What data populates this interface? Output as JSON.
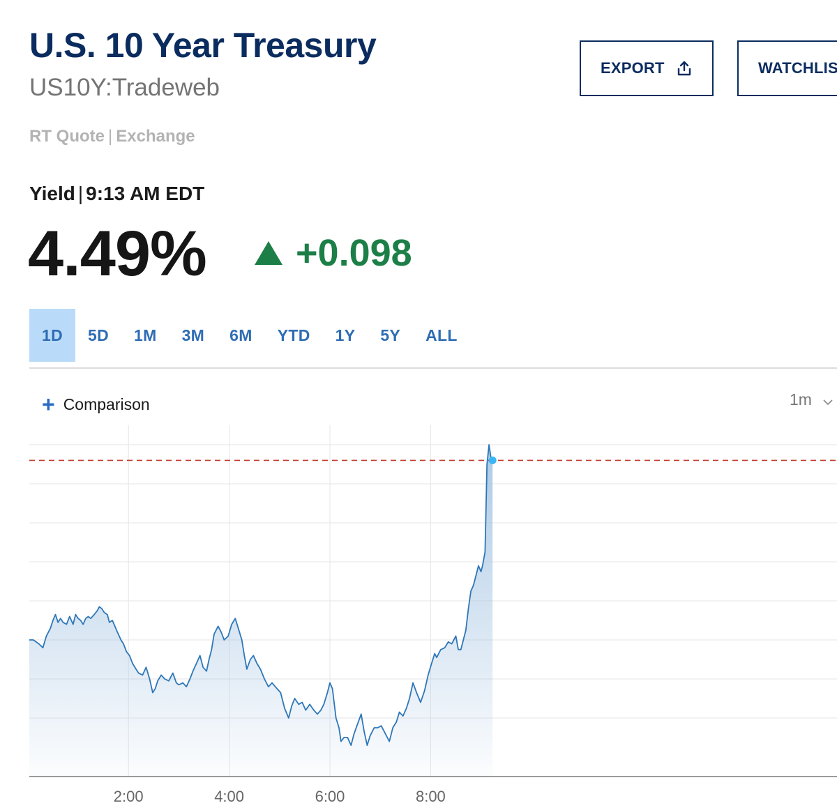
{
  "header": {
    "title": "U.S. 10 Year Treasury",
    "symbol": "US10Y:Tradeweb",
    "quote_type": "RT Quote",
    "quote_separator": "|",
    "quote_source": "Exchange"
  },
  "actions": {
    "export_label": "EXPORT",
    "watchlist_label": "WATCHLIST"
  },
  "quote": {
    "label": "Yield",
    "separator": "|",
    "time": "9:13 AM EDT",
    "value": "4.49%",
    "change": "+0.098",
    "direction": "up"
  },
  "range_tabs": [
    {
      "label": "1D",
      "active": true
    },
    {
      "label": "5D",
      "active": false
    },
    {
      "label": "1M",
      "active": false
    },
    {
      "label": "3M",
      "active": false
    },
    {
      "label": "6M",
      "active": false
    },
    {
      "label": "YTD",
      "active": false
    },
    {
      "label": "1Y",
      "active": false
    },
    {
      "label": "5Y",
      "active": false
    },
    {
      "label": "ALL",
      "active": false
    }
  ],
  "toolbar": {
    "comparison_label": "Comparison",
    "interval": "1m"
  },
  "colors": {
    "title": "#0b2c5f",
    "accent": "#2f6db5",
    "positive": "#1c7f47",
    "line": "#2e77b7",
    "reference_line": "#c0392b",
    "current_dot": "#3ab6f5"
  },
  "chart_data": {
    "type": "area",
    "x_unit": "hour",
    "x_ticks": [
      {
        "label": "2:00",
        "value": 2
      },
      {
        "label": "4:00",
        "value": 4
      },
      {
        "label": "6:00",
        "value": 6
      },
      {
        "label": "8:00",
        "value": 8
      }
    ],
    "xlim": [
      0.03,
      16.07
    ],
    "ylim": [
      4.33,
      4.51
    ],
    "gridlines_y": [
      4.36,
      4.38,
      4.4,
      4.42,
      4.44,
      4.46,
      4.48,
      4.5
    ],
    "reference_value": 4.492,
    "current": {
      "x": 9.23,
      "y": 4.492
    },
    "series": [
      {
        "values": [
          [
            0.03,
            4.4
          ],
          [
            0.11,
            4.4
          ],
          [
            0.22,
            4.398
          ],
          [
            0.3,
            4.396
          ],
          [
            0.37,
            4.402
          ],
          [
            0.45,
            4.406
          ],
          [
            0.5,
            4.41
          ],
          [
            0.55,
            4.413
          ],
          [
            0.6,
            4.409
          ],
          [
            0.65,
            4.411
          ],
          [
            0.7,
            4.409
          ],
          [
            0.77,
            4.408
          ],
          [
            0.83,
            4.412
          ],
          [
            0.9,
            4.408
          ],
          [
            0.95,
            4.413
          ],
          [
            1.0,
            4.411
          ],
          [
            1.05,
            4.41
          ],
          [
            1.1,
            4.408
          ],
          [
            1.15,
            4.411
          ],
          [
            1.2,
            4.412
          ],
          [
            1.25,
            4.411
          ],
          [
            1.32,
            4.413
          ],
          [
            1.38,
            4.415
          ],
          [
            1.42,
            4.417
          ],
          [
            1.47,
            4.416
          ],
          [
            1.52,
            4.414
          ],
          [
            1.58,
            4.413
          ],
          [
            1.62,
            4.409
          ],
          [
            1.68,
            4.41
          ],
          [
            1.73,
            4.407
          ],
          [
            1.78,
            4.404
          ],
          [
            1.85,
            4.4
          ],
          [
            1.9,
            4.398
          ],
          [
            1.96,
            4.394
          ],
          [
            2.02,
            4.392
          ],
          [
            2.08,
            4.388
          ],
          [
            2.15,
            4.385
          ],
          [
            2.2,
            4.383
          ],
          [
            2.28,
            4.382
          ],
          [
            2.35,
            4.386
          ],
          [
            2.42,
            4.38
          ],
          [
            2.48,
            4.373
          ],
          [
            2.53,
            4.375
          ],
          [
            2.58,
            4.379
          ],
          [
            2.65,
            4.382
          ],
          [
            2.72,
            4.38
          ],
          [
            2.8,
            4.379
          ],
          [
            2.88,
            4.383
          ],
          [
            2.95,
            4.378
          ],
          [
            3.0,
            4.377
          ],
          [
            3.08,
            4.378
          ],
          [
            3.15,
            4.376
          ],
          [
            3.22,
            4.38
          ],
          [
            3.28,
            4.384
          ],
          [
            3.35,
            4.388
          ],
          [
            3.42,
            4.392
          ],
          [
            3.48,
            4.386
          ],
          [
            3.55,
            4.384
          ],
          [
            3.6,
            4.39
          ],
          [
            3.65,
            4.395
          ],
          [
            3.7,
            4.403
          ],
          [
            3.78,
            4.407
          ],
          [
            3.84,
            4.404
          ],
          [
            3.9,
            4.4
          ],
          [
            3.98,
            4.402
          ],
          [
            4.05,
            4.408
          ],
          [
            4.12,
            4.411
          ],
          [
            4.18,
            4.406
          ],
          [
            4.25,
            4.4
          ],
          [
            4.3,
            4.392
          ],
          [
            4.35,
            4.385
          ],
          [
            4.42,
            4.39
          ],
          [
            4.48,
            4.392
          ],
          [
            4.55,
            4.388
          ],
          [
            4.62,
            4.385
          ],
          [
            4.7,
            4.38
          ],
          [
            4.78,
            4.376
          ],
          [
            4.85,
            4.378
          ],
          [
            4.95,
            4.375
          ],
          [
            5.02,
            4.373
          ],
          [
            5.1,
            4.365
          ],
          [
            5.18,
            4.36
          ],
          [
            5.24,
            4.366
          ],
          [
            5.3,
            4.37
          ],
          [
            5.38,
            4.367
          ],
          [
            5.45,
            4.368
          ],
          [
            5.52,
            4.364
          ],
          [
            5.6,
            4.367
          ],
          [
            5.68,
            4.364
          ],
          [
            5.75,
            4.362
          ],
          [
            5.82,
            4.364
          ],
          [
            5.88,
            4.367
          ],
          [
            5.95,
            4.373
          ],
          [
            6.0,
            4.378
          ],
          [
            6.05,
            4.375
          ],
          [
            6.12,
            4.36
          ],
          [
            6.18,
            4.355
          ],
          [
            6.22,
            4.348
          ],
          [
            6.28,
            4.35
          ],
          [
            6.35,
            4.35
          ],
          [
            6.42,
            4.346
          ],
          [
            6.48,
            4.352
          ],
          [
            6.55,
            4.357
          ],
          [
            6.62,
            4.362
          ],
          [
            6.68,
            4.353
          ],
          [
            6.74,
            4.346
          ],
          [
            6.8,
            4.351
          ],
          [
            6.88,
            4.355
          ],
          [
            6.95,
            4.355
          ],
          [
            7.02,
            4.356
          ],
          [
            7.1,
            4.352
          ],
          [
            7.18,
            4.348
          ],
          [
            7.25,
            4.355
          ],
          [
            7.32,
            4.358
          ],
          [
            7.38,
            4.363
          ],
          [
            7.45,
            4.361
          ],
          [
            7.52,
            4.365
          ],
          [
            7.58,
            4.37
          ],
          [
            7.65,
            4.378
          ],
          [
            7.72,
            4.373
          ],
          [
            7.8,
            4.368
          ],
          [
            7.88,
            4.374
          ],
          [
            7.95,
            4.382
          ],
          [
            8.02,
            4.388
          ],
          [
            8.08,
            4.393
          ],
          [
            8.12,
            4.391
          ],
          [
            8.2,
            4.395
          ],
          [
            8.28,
            4.396
          ],
          [
            8.35,
            4.399
          ],
          [
            8.42,
            4.398
          ],
          [
            8.5,
            4.402
          ],
          [
            8.55,
            4.395
          ],
          [
            8.6,
            4.395
          ],
          [
            8.65,
            4.4
          ],
          [
            8.7,
            4.405
          ],
          [
            8.75,
            4.416
          ],
          [
            8.8,
            4.425
          ],
          [
            8.85,
            4.428
          ],
          [
            8.9,
            4.433
          ],
          [
            8.95,
            4.438
          ],
          [
            9.0,
            4.435
          ],
          [
            9.03,
            4.438
          ],
          [
            9.08,
            4.445
          ],
          [
            9.12,
            4.49
          ],
          [
            9.16,
            4.5
          ],
          [
            9.2,
            4.493
          ],
          [
            9.23,
            4.492
          ]
        ]
      }
    ]
  }
}
